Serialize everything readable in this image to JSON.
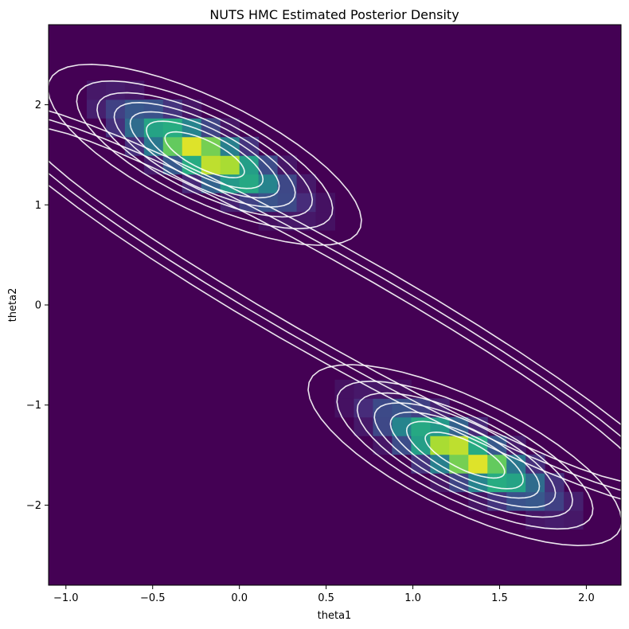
{
  "chart_data": {
    "type": "heatmap",
    "title": "NUTS HMC Estimated Posterior Density",
    "xlabel": "theta1",
    "ylabel": "theta2",
    "xlim": [
      -1.1,
      2.2
    ],
    "ylim": [
      -2.8,
      2.8
    ],
    "xticks": [
      -1.0,
      -0.5,
      0.0,
      0.5,
      1.0,
      1.5,
      2.0
    ],
    "xtick_labels": [
      "−1.0",
      "−0.5",
      "0.0",
      "0.5",
      "1.0",
      "1.5",
      "2.0"
    ],
    "yticks": [
      -2,
      -1,
      0,
      1,
      2
    ],
    "ytick_labels": [
      "−2",
      "−1",
      "0",
      "1",
      "2"
    ],
    "colormap": "viridis",
    "contour_color": "#ffffff",
    "density_modes": [
      {
        "x": -0.2,
        "y": 1.5,
        "peak": 1.0
      },
      {
        "x": 1.3,
        "y": -1.5,
        "peak": 1.0
      }
    ],
    "contour_levels": 7,
    "grid": false
  }
}
